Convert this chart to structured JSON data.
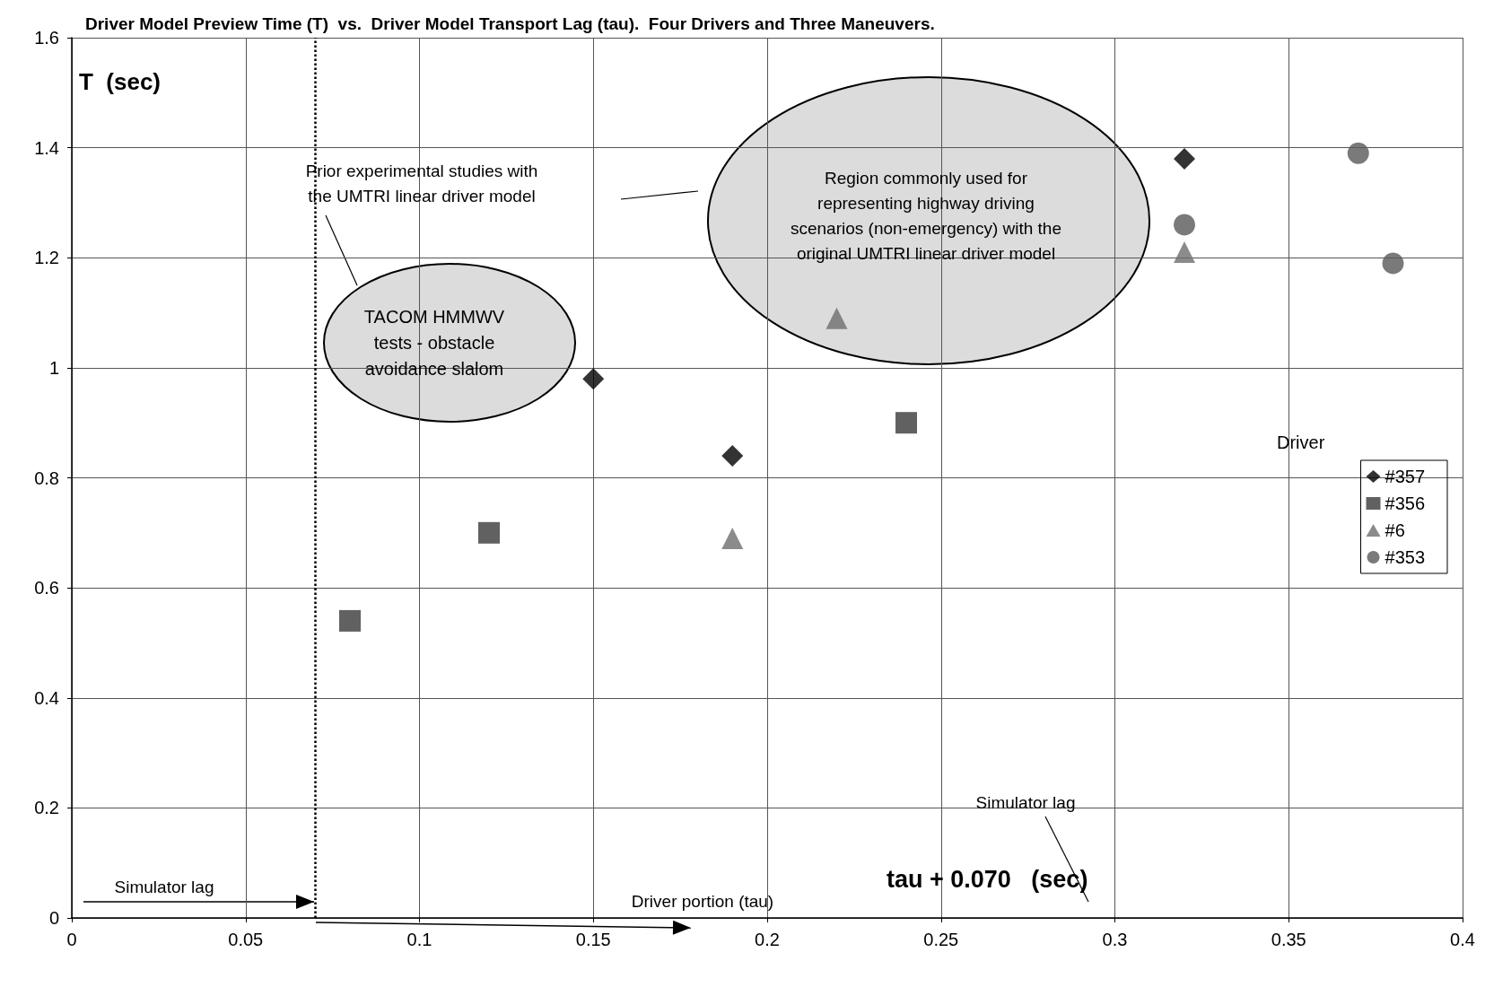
{
  "chart_data": {
    "type": "scatter",
    "title": "Driver Model Preview Time (T)  vs.  Driver Model Transport Lag (tau).  Four Drivers and Three Maneuvers.",
    "xlabel": "tau + 0.070   (sec)",
    "ylabel": "T  (sec)",
    "legend_title": "Driver",
    "series": [
      {
        "name": "#357",
        "color": "#000000",
        "marker": "diamond",
        "x": [
          0.15,
          0.19,
          0.32
        ],
        "values": [
          0.98,
          0.84,
          1.38
        ]
      },
      {
        "name": "#356",
        "color": "#3a3a3a",
        "marker": "square",
        "x": [
          0.08,
          0.12,
          0.24
        ],
        "values": [
          0.54,
          0.7,
          0.9
        ]
      },
      {
        "name": "#6",
        "color": "#6e6e6e",
        "marker": "triangle",
        "x": [
          0.19,
          0.22,
          0.32
        ],
        "values": [
          0.69,
          1.09,
          1.21
        ]
      },
      {
        "name": "#353",
        "color": "#595959",
        "marker": "circle",
        "x": [
          0.32,
          0.37,
          0.38
        ],
        "values": [
          1.26,
          1.39,
          1.19
        ]
      }
    ],
    "xlim": [
      0,
      0.4
    ],
    "xticks": [
      0,
      0.05,
      0.1,
      0.15,
      0.2,
      0.25,
      0.3,
      0.35,
      0.4
    ],
    "ylim": [
      0,
      1.6
    ],
    "yticks": [
      0,
      0.2,
      0.4,
      0.6,
      0.8,
      1,
      1.2,
      1.4,
      1.6
    ],
    "ref_lines": [
      {
        "axis": "x",
        "value": 0.07,
        "color": "#000000",
        "line_style": "dotted"
      }
    ],
    "annotations": [
      "Prior experimental studies with\nthe UMTRI linear driver model",
      "TACOM HMMWV\ntests - obstacle\navoidance slalom",
      "Region commonly used for\nrepresenting highway driving\nscenarios (non-emergency) with the\noriginal UMTRI linear driver model",
      "Simulator lag",
      "Driver portion (tau)",
      "Simulator lag"
    ],
    "grid": true,
    "legend": "right"
  }
}
